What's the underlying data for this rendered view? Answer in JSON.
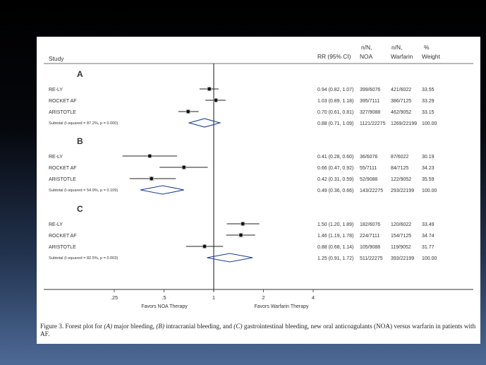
{
  "figure": {
    "caption_parts": {
      "p1": "Figure 3. Forest plot for ",
      "a": "(A)",
      "p2": " major bleeding, ",
      "b": "(B)",
      "p3": " intracranial bleeding, and ",
      "c": "(C)",
      "p4": " gastrointestinal bleeding, new oral anticoagulants (NOA) versus warfarin in patients with AF."
    }
  },
  "chart_data": {
    "type": "forest",
    "scale": "log",
    "xlim": [
      0.2,
      4
    ],
    "xticks": [
      ".25",
      ".5",
      "1",
      "2",
      "4"
    ],
    "xtick_values": [
      0.25,
      0.5,
      1,
      2,
      4
    ],
    "xlabel_left": "Favors NOA Therapy",
    "xlabel_right": "Favors Warfarin Therapy",
    "headers": {
      "study": "Study",
      "rr": "RR (95% CI)",
      "noa_top": "n/N,",
      "noa": "NOA",
      "warf_top": "n/N,",
      "warf": "Warfarin",
      "weight_top": "%",
      "weight": "Weight"
    },
    "groups": [
      {
        "label": "A",
        "studies": [
          {
            "name": "RE-LY",
            "rr": 0.94,
            "lo": 0.82,
            "hi": 1.07,
            "ci_text": "0.94 (0.82, 1.07)",
            "noa": "399/6076",
            "warfarin": "421/6022",
            "weight": "33.55"
          },
          {
            "name": "ROCKET AF",
            "rr": 1.03,
            "lo": 0.89,
            "hi": 1.18,
            "ci_text": "1.03 (0.89, 1.18)",
            "noa": "395/7111",
            "warfarin": "386/7125",
            "weight": "33.29"
          },
          {
            "name": "ARISTOTLE",
            "rr": 0.7,
            "lo": 0.61,
            "hi": 0.81,
            "ci_text": "0.70 (0.61, 0.81)",
            "noa": "327/9088",
            "warfarin": "462/9052",
            "weight": "33.15"
          }
        ],
        "subtotal": {
          "name": "Subtotal  (I-squared = 87.2%, p = 0.000)",
          "rr": 0.88,
          "lo": 0.71,
          "hi": 1.09,
          "ci_text": "0.88 (0.71, 1.09)",
          "noa": "1121/22275",
          "warfarin": "1269/22199",
          "weight": "100.00"
        }
      },
      {
        "label": "B",
        "studies": [
          {
            "name": "RE-LY",
            "rr": 0.41,
            "lo": 0.28,
            "hi": 0.6,
            "ci_text": "0.41 (0.28, 0.60)",
            "noa": "36/6076",
            "warfarin": "87/6022",
            "weight": "30.19"
          },
          {
            "name": "ROCKET AF",
            "rr": 0.66,
            "lo": 0.47,
            "hi": 0.92,
            "ci_text": "0.66 (0.47, 0.92)",
            "noa": "55/7111",
            "warfarin": "84/7125",
            "weight": "34.23"
          },
          {
            "name": "ARISTOTLE",
            "rr": 0.42,
            "lo": 0.31,
            "hi": 0.59,
            "ci_text": "0.42 (0.31, 0.59)",
            "noa": "52/9088",
            "warfarin": "122/9052",
            "weight": "35.59"
          }
        ],
        "subtotal": {
          "name": "Subtotal  (I-squared = 54.9%, p = 0.109)",
          "rr": 0.49,
          "lo": 0.36,
          "hi": 0.66,
          "ci_text": "0.49 (0.36, 0.66)",
          "noa": "143/22275",
          "warfarin": "293/22199",
          "weight": "100.00"
        }
      },
      {
        "label": "C",
        "studies": [
          {
            "name": "RE-LY",
            "rr": 1.5,
            "lo": 1.2,
            "hi": 1.89,
            "ci_text": "1.50 (1.20, 1.89)",
            "noa": "182/6076",
            "warfarin": "120/6022",
            "weight": "33.49"
          },
          {
            "name": "ROCKET AF",
            "rr": 1.46,
            "lo": 1.19,
            "hi": 1.78,
            "ci_text": "1.46 (1.19, 1.78)",
            "noa": "224/7111",
            "warfarin": "154/7125",
            "weight": "34.74"
          },
          {
            "name": "ARISTOTLE",
            "rr": 0.88,
            "lo": 0.68,
            "hi": 1.14,
            "ci_text": "0.88 (0.68, 1.14)",
            "noa": "105/9088",
            "warfarin": "119/9052",
            "weight": "31.77"
          }
        ],
        "subtotal": {
          "name": "Subtotal  (I-squared = 82.5%, p = 0.003)",
          "rr": 1.25,
          "lo": 0.91,
          "hi": 1.72,
          "ci_text": "1.25 (0.91, 1.72)",
          "noa": "511/22275",
          "warfarin": "393/22199",
          "weight": "100.00"
        }
      }
    ]
  }
}
